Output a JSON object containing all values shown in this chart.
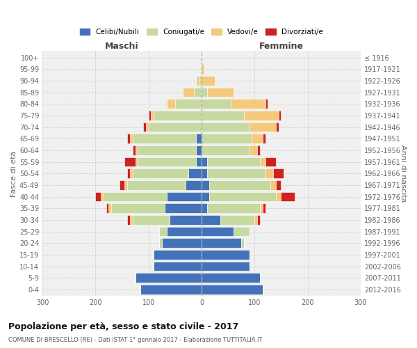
{
  "age_groups": [
    "0-4",
    "5-9",
    "10-14",
    "15-19",
    "20-24",
    "25-29",
    "30-34",
    "35-39",
    "40-44",
    "45-49",
    "50-54",
    "55-59",
    "60-64",
    "65-69",
    "70-74",
    "75-79",
    "80-84",
    "85-89",
    "90-94",
    "95-99",
    "100+"
  ],
  "birth_years": [
    "2012-2016",
    "2007-2011",
    "2002-2006",
    "1997-2001",
    "1992-1996",
    "1987-1991",
    "1982-1986",
    "1977-1981",
    "1972-1976",
    "1967-1971",
    "1962-1966",
    "1957-1961",
    "1952-1956",
    "1947-1951",
    "1942-1946",
    "1937-1941",
    "1932-1936",
    "1927-1931",
    "1922-1926",
    "1917-1921",
    "≤ 1916"
  ],
  "males_celibi": [
    115,
    125,
    90,
    90,
    75,
    65,
    60,
    70,
    65,
    30,
    25,
    10,
    10,
    10,
    0,
    0,
    0,
    0,
    0,
    0,
    0
  ],
  "males_coniugati": [
    0,
    0,
    0,
    0,
    5,
    15,
    70,
    100,
    120,
    110,
    105,
    110,
    110,
    120,
    100,
    90,
    50,
    15,
    5,
    0,
    0
  ],
  "males_vedovi": [
    0,
    0,
    0,
    0,
    0,
    0,
    5,
    5,
    5,
    5,
    5,
    5,
    5,
    5,
    5,
    5,
    15,
    20,
    5,
    0,
    0
  ],
  "males_divorziati": [
    0,
    0,
    0,
    0,
    0,
    0,
    5,
    5,
    10,
    10,
    5,
    20,
    5,
    5,
    5,
    5,
    0,
    0,
    0,
    0,
    0
  ],
  "females_nubili": [
    115,
    110,
    90,
    90,
    75,
    60,
    35,
    10,
    15,
    15,
    10,
    10,
    0,
    0,
    0,
    0,
    0,
    0,
    0,
    0,
    0
  ],
  "females_coniugate": [
    0,
    0,
    0,
    0,
    5,
    30,
    65,
    100,
    125,
    115,
    110,
    100,
    90,
    95,
    90,
    80,
    55,
    10,
    0,
    0,
    0
  ],
  "females_vedove": [
    0,
    0,
    0,
    0,
    0,
    0,
    5,
    5,
    10,
    10,
    15,
    10,
    15,
    20,
    50,
    65,
    65,
    50,
    25,
    5,
    0
  ],
  "females_divorziate": [
    0,
    0,
    0,
    0,
    0,
    0,
    5,
    5,
    25,
    10,
    20,
    20,
    5,
    5,
    5,
    5,
    5,
    0,
    0,
    0,
    0
  ],
  "color_celibi": "#4472b8",
  "color_coniugati": "#c5d9a0",
  "color_vedovi": "#f5c97a",
  "color_divorziati": "#cc2222",
  "legend_labels": [
    "Celibi/Nubili",
    "Coniugati/e",
    "Vedovi/e",
    "Divorziati/e"
  ],
  "title": "Popolazione per età, sesso e stato civile - 2017",
  "subtitle": "COMUNE DI BRESCELLO (RE) - Dati ISTAT 1° gennaio 2017 - Elaborazione TUTTITALIA.IT",
  "label_maschi": "Maschi",
  "label_femmine": "Femmine",
  "ylabel_left": "Fasce di età",
  "ylabel_right": "Anni di nascita",
  "xlim": 300,
  "bar_height": 0.82,
  "bg_plot": "#f0f0f0",
  "bg_fig": "#ffffff"
}
